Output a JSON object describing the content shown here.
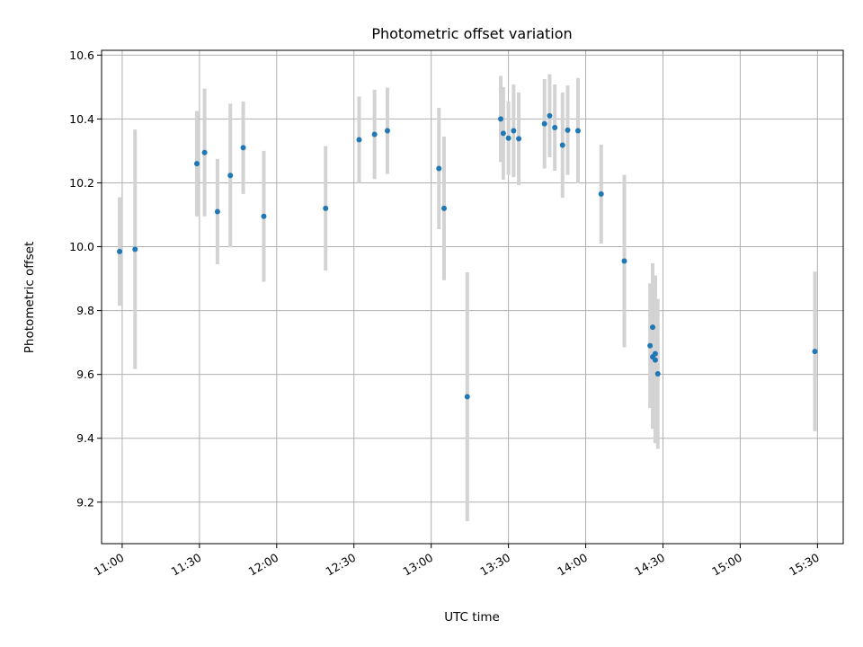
{
  "chart_data": {
    "type": "scatter",
    "title": "Photometric offset variation",
    "xlabel": "UTC time",
    "ylabel": "Photometric offset",
    "grid": true,
    "xlim": [
      "10:52",
      "15:40"
    ],
    "ylim": [
      9.07,
      10.615
    ],
    "xticks": [
      "11:00",
      "11:30",
      "12:00",
      "12:30",
      "13:00",
      "13:30",
      "14:00",
      "14:30",
      "15:00",
      "15:30"
    ],
    "yticks": [
      9.2,
      9.4,
      9.6,
      9.8,
      10.0,
      10.2,
      10.4,
      10.6
    ],
    "ytick_labels": [
      "9.2",
      "9.4",
      "9.6",
      "9.8",
      "10.0",
      "10.2",
      "10.4",
      "10.6"
    ],
    "colors": {
      "point": "#1f77b4",
      "errorbar": "#d3d3d3",
      "grid": "#b0b0b0"
    },
    "points": [
      {
        "x": "10:59",
        "y": 9.985,
        "yerr": 0.17
      },
      {
        "x": "11:05",
        "y": 9.992,
        "yerr": 0.375
      },
      {
        "x": "11:29",
        "y": 10.26,
        "yerr": 0.165
      },
      {
        "x": "11:32",
        "y": 10.295,
        "yerr": 0.2
      },
      {
        "x": "11:37",
        "y": 10.11,
        "yerr": 0.165
      },
      {
        "x": "11:42",
        "y": 10.223,
        "yerr": 0.225
      },
      {
        "x": "11:47",
        "y": 10.31,
        "yerr": 0.145
      },
      {
        "x": "11:55",
        "y": 10.095,
        "yerr": 0.205
      },
      {
        "x": "12:19",
        "y": 10.12,
        "yerr": 0.195
      },
      {
        "x": "12:32",
        "y": 10.335,
        "yerr": 0.135
      },
      {
        "x": "12:38",
        "y": 10.352,
        "yerr": 0.14
      },
      {
        "x": "12:43",
        "y": 10.363,
        "yerr": 0.135
      },
      {
        "x": "13:03",
        "y": 10.245,
        "yerr": 0.19
      },
      {
        "x": "13:05",
        "y": 10.12,
        "yerr": 0.225
      },
      {
        "x": "13:14",
        "y": 9.53,
        "yerr": 0.39
      },
      {
        "x": "13:27",
        "y": 10.4,
        "yerr": 0.135
      },
      {
        "x": "13:28",
        "y": 10.355,
        "yerr": 0.145
      },
      {
        "x": "13:30",
        "y": 10.34,
        "yerr": 0.115
      },
      {
        "x": "13:32",
        "y": 10.363,
        "yerr": 0.145
      },
      {
        "x": "13:34",
        "y": 10.338,
        "yerr": 0.145
      },
      {
        "x": "13:44",
        "y": 10.385,
        "yerr": 0.14
      },
      {
        "x": "13:46",
        "y": 10.41,
        "yerr": 0.13
      },
      {
        "x": "13:48",
        "y": 10.373,
        "yerr": 0.135
      },
      {
        "x": "13:51",
        "y": 10.318,
        "yerr": 0.165
      },
      {
        "x": "13:53",
        "y": 10.365,
        "yerr": 0.14
      },
      {
        "x": "13:57",
        "y": 10.363,
        "yerr": 0.165
      },
      {
        "x": "14:06",
        "y": 10.165,
        "yerr": 0.155
      },
      {
        "x": "14:15",
        "y": 9.955,
        "yerr": 0.27
      },
      {
        "x": "14:25",
        "y": 9.69,
        "yerr": 0.195
      },
      {
        "x": "14:26",
        "y": 9.748,
        "yerr": 0.2
      },
      {
        "x": "14:26",
        "y": 9.655,
        "yerr": 0.225
      },
      {
        "x": "14:27",
        "y": 9.645,
        "yerr": 0.26
      },
      {
        "x": "14:27",
        "y": 9.665,
        "yerr": 0.245
      },
      {
        "x": "14:28",
        "y": 9.602,
        "yerr": 0.235
      },
      {
        "x": "15:29",
        "y": 9.672,
        "yerr": 0.25
      }
    ]
  }
}
